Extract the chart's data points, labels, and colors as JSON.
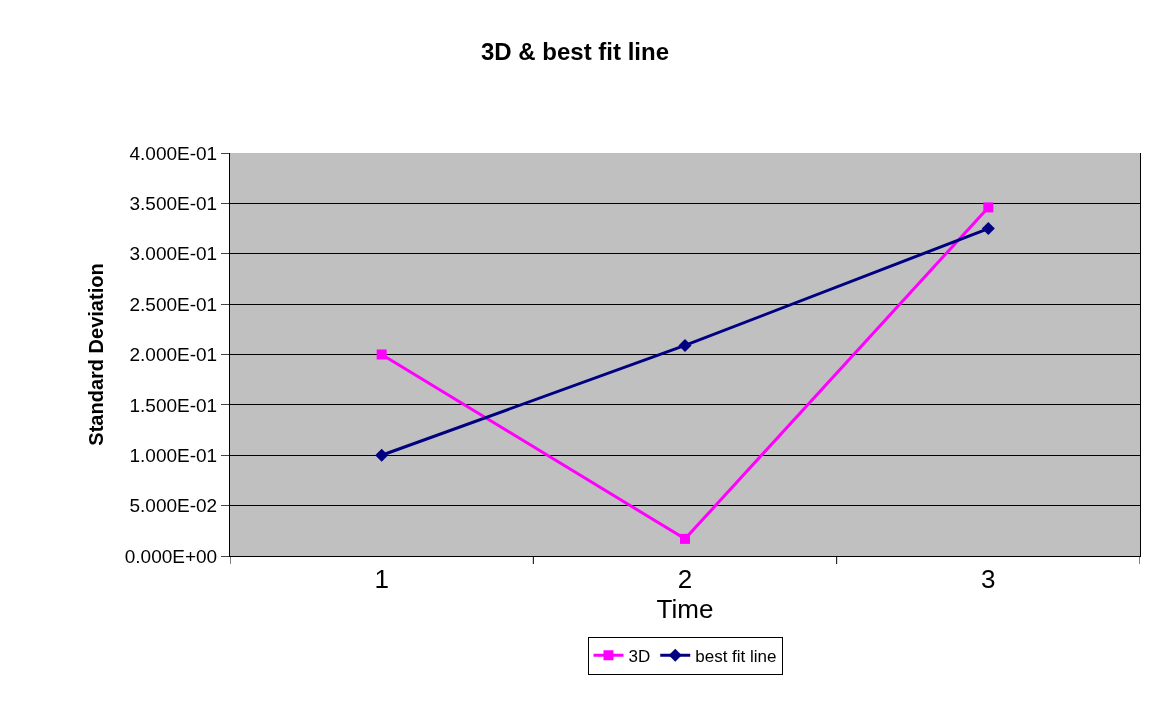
{
  "chart_data": {
    "type": "line",
    "title": "3D & best fit line",
    "xlabel": "Time",
    "ylabel": "Standard Deviation",
    "categories": [
      "1",
      "2",
      "3"
    ],
    "series": [
      {
        "name": "3D",
        "color": "#ff00ff",
        "values": [
          0.2,
          0.017,
          0.346
        ],
        "marker": "square"
      },
      {
        "name": "best fit line",
        "color": "#000080",
        "values": [
          0.1,
          0.209,
          0.325
        ],
        "marker": "diamond"
      }
    ],
    "ylim": [
      0,
      0.4
    ],
    "yticks": [
      {
        "value": 0,
        "label": "0.000E+00"
      },
      {
        "value": 0.05,
        "label": "5.000E-02"
      },
      {
        "value": 0.1,
        "label": "1.000E-01"
      },
      {
        "value": 0.15,
        "label": "1.500E-01"
      },
      {
        "value": 0.2,
        "label": "2.000E-01"
      },
      {
        "value": 0.25,
        "label": "2.500E-01"
      },
      {
        "value": 0.3,
        "label": "3.000E-01"
      },
      {
        "value": 0.35,
        "label": "3.500E-01"
      },
      {
        "value": 0.4,
        "label": "4.000E-01"
      }
    ],
    "grid": "y",
    "legend": "bottom",
    "line_style": "solid"
  }
}
